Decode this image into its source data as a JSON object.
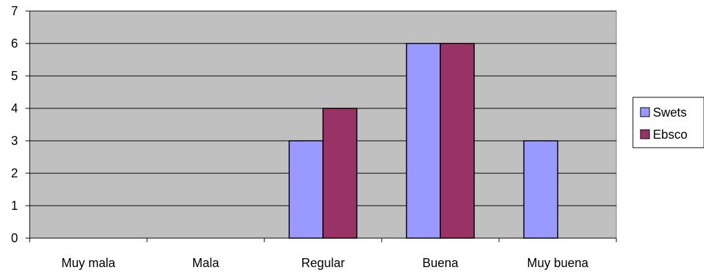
{
  "chart_data": {
    "type": "bar",
    "title": "",
    "xlabel": "",
    "ylabel": "",
    "categories": [
      "Muy mala",
      "Mala",
      "Regular",
      "Buena",
      "Muy buena"
    ],
    "series": [
      {
        "name": "Swets",
        "values": [
          0,
          0,
          3,
          6,
          3
        ],
        "color": "#9999ff"
      },
      {
        "name": "Ebsco",
        "values": [
          0,
          0,
          4,
          6,
          0
        ],
        "color": "#993366"
      }
    ],
    "ylim": [
      0,
      7
    ],
    "yticks": [
      "0",
      "1",
      "2",
      "3",
      "4",
      "5",
      "6",
      "7"
    ],
    "grid": true,
    "plot_background": "#c0c0c0",
    "legend_position": "right"
  }
}
